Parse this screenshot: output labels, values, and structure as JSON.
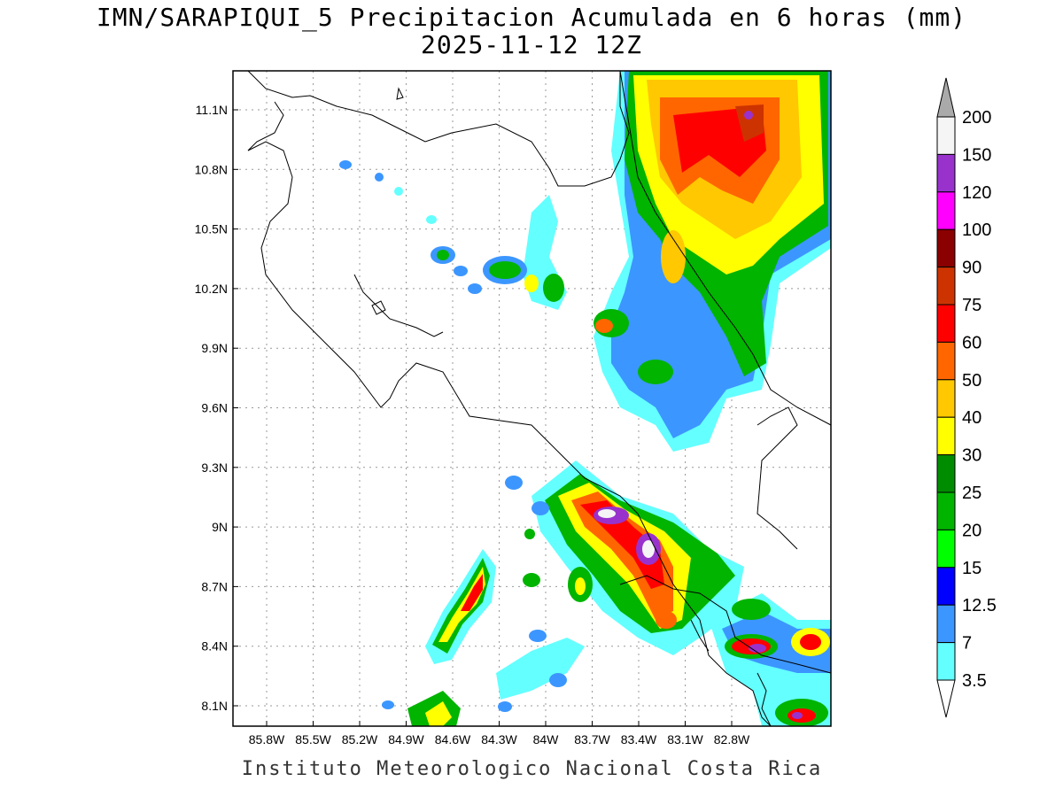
{
  "title_line1": "IMN/SARAPIQUI_5 Precipitacion Acumulada en 6 horas (mm)",
  "title_line2": "2025-11-12 12Z",
  "footer": "Instituto Meteorologico Nacional Costa Rica",
  "lat_labels": [
    "11.1N",
    "10.8N",
    "10.5N",
    "10.2N",
    "9.9N",
    "9.6N",
    "9.3N",
    "9N",
    "8.7N",
    "8.4N",
    "8.1N"
  ],
  "lon_labels": [
    "85.8W",
    "85.5W",
    "85.2W",
    "84.9W",
    "84.6W",
    "84.3W",
    "84W",
    "83.7W",
    "83.4W",
    "83.1W",
    "82.8W"
  ],
  "colorbar": {
    "labels": [
      "200",
      "150",
      "120",
      "100",
      "90",
      "75",
      "60",
      "50",
      "40",
      "30",
      "25",
      "20",
      "15",
      "12.5",
      "7",
      "3.5"
    ],
    "colors": [
      "#aaaaaa",
      "#f5f5f5",
      "#9932cc",
      "#ff00ff",
      "#8b0000",
      "#cd3300",
      "#ff0000",
      "#ff6600",
      "#ffc800",
      "#ffff00",
      "#008c00",
      "#00b400",
      "#00ff00",
      "#0000ff",
      "#3c96ff",
      "#64ffff"
    ]
  }
}
